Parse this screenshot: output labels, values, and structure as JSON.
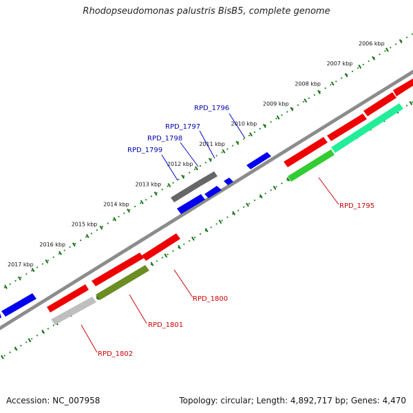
{
  "title": "Rhodopseudomonas palustris BisB5, complete genome",
  "footer": {
    "accession": "Accession: NC_007958",
    "summary": "Topology: circular; Length: 4,892,717 bp; Genes: 4,470"
  },
  "colors": {
    "backbone": "#8c8c8c",
    "ruler_dots": "#1a8a1a",
    "ruler_ticks": "#1a6e1a",
    "forward_label": "#0000aa",
    "reverse_label": "#cc0000",
    "leader_forward": "#0000cc",
    "leader_reverse": "#cc0000"
  },
  "scale": {
    "unit": "kbp",
    "labels": [
      {
        "text": "2006 kbp",
        "kbp": 2006
      },
      {
        "text": "2007 kbp",
        "kbp": 2007
      },
      {
        "text": "2008 kbp",
        "kbp": 2008
      },
      {
        "text": "2009 kbp",
        "kbp": 2009
      },
      {
        "text": "2010 kbp",
        "kbp": 2010
      },
      {
        "text": "2011 kbp",
        "kbp": 2011
      },
      {
        "text": "2012 kbp",
        "kbp": 2012
      },
      {
        "text": "2013 kbp",
        "kbp": 2013
      },
      {
        "text": "2014 kbp",
        "kbp": 2014
      },
      {
        "text": "2015 kbp",
        "kbp": 2015
      },
      {
        "text": "2016 kbp",
        "kbp": 2016
      },
      {
        "text": "2017 kbp",
        "kbp": 2017
      }
    ]
  },
  "labels": {
    "forward": [
      "RPD_1796",
      "RPD_1797",
      "RPD_1798",
      "RPD_1799"
    ],
    "reverse": [
      "RPD_1795",
      "RPD_1800",
      "RPD_1801",
      "RPD_1802"
    ]
  }
}
